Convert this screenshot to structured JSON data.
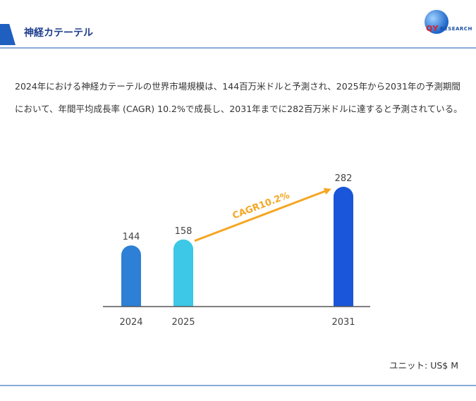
{
  "header": {
    "title": "神経カテーテル"
  },
  "logo": {
    "brand_short": "QY",
    "brand_rest": "RESEARCH"
  },
  "description": "2024年における神経カテーテルの世界市場規模は、144百万米ドルと予測され、2025年から2031年の予測期間において、年間平均成長率 (CAGR) 10.2%で成長し、2031年までに282百万米ドルに達すると予測されている。",
  "unit_label": "ユニット: US$ M",
  "colors": {
    "bar_2024": "#2e7fd6",
    "bar_2025": "#3cc8e6",
    "bar_2031": "#1a56d9",
    "arrow": "#f5a623",
    "axis": "#555555"
  },
  "chart_data": {
    "type": "bar",
    "categories": [
      "2024",
      "2025",
      "2031"
    ],
    "values": [
      144,
      158,
      282
    ],
    "annotation": "CAGR10.2%",
    "ylim": [
      0,
      300
    ]
  }
}
